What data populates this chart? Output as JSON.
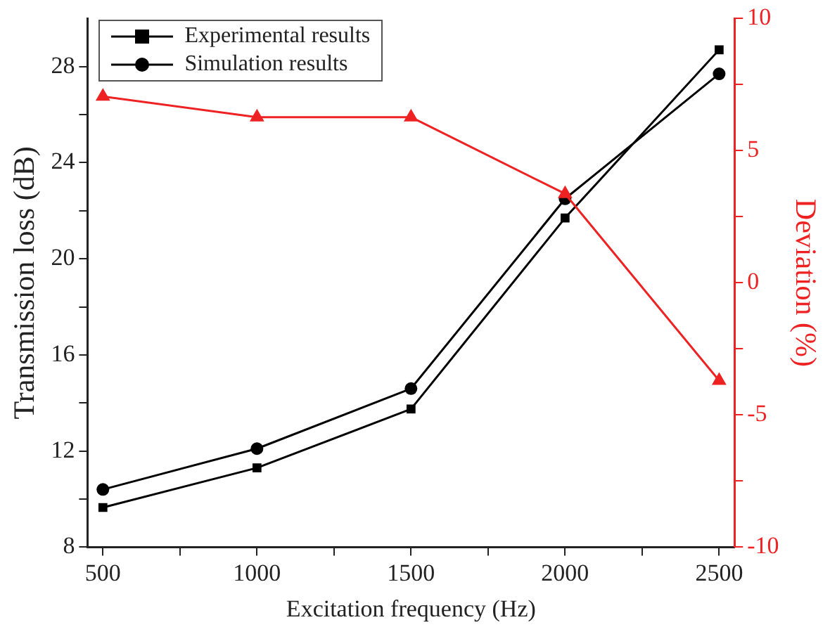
{
  "chart_data": {
    "type": "line",
    "xlabel": "Excitation frequency (Hz)",
    "ylabel": "Transmission loss (dB)",
    "y2label": "Deviation (%)",
    "x": [
      500,
      1000,
      1500,
      2000,
      2500
    ],
    "xlim": [
      450,
      2550
    ],
    "xticks": [
      500,
      {
        "value": 750,
        "label": null
      },
      1000,
      {
        "value": 1250,
        "label": null
      },
      1500,
      {
        "value": 1750,
        "label": null
      },
      2000,
      {
        "value": 2250,
        "label": null
      },
      2500
    ],
    "ylim": [
      8,
      30
    ],
    "yticks": [
      8,
      {
        "value": 10,
        "label": null
      },
      12,
      {
        "value": 14,
        "label": null
      },
      16,
      {
        "value": 18,
        "label": null
      },
      20,
      {
        "value": 22,
        "label": null
      },
      24,
      {
        "value": 26,
        "label": null
      },
      28
    ],
    "y2lim": [
      -10,
      10
    ],
    "y2ticks": [
      -10,
      {
        "value": -7.5,
        "label": null
      },
      -5,
      {
        "value": -2.5,
        "label": null
      },
      0,
      {
        "value": 2.5,
        "label": null
      },
      5,
      {
        "value": 7.5,
        "label": null
      },
      10
    ],
    "series": [
      {
        "name": "Experimental results",
        "color": "#000000",
        "marker": "square",
        "values": [
          9.65,
          11.3,
          13.75,
          21.7,
          28.7
        ]
      },
      {
        "name": "Simulation results",
        "color": "#000000",
        "marker": "circle",
        "values": [
          10.4,
          12.1,
          14.6,
          22.5,
          27.7
        ]
      },
      {
        "color": "#ee2222",
        "marker": "triangle",
        "axis": "y2",
        "values": [
          7.05,
          6.27,
          6.27,
          3.37,
          -3.7
        ]
      }
    ],
    "grid": false,
    "legend": "top left",
    "line_style": "solid"
  }
}
